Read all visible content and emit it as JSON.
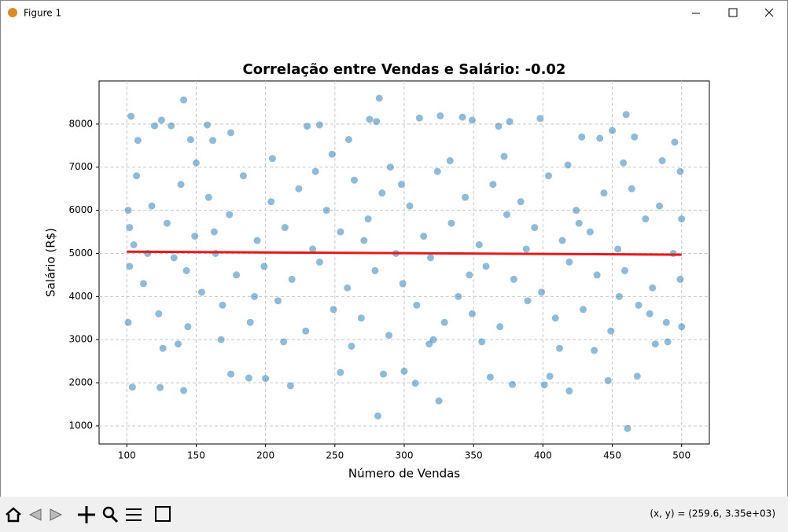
{
  "window": {
    "title": "Figure 1",
    "status": "(x, y) = (259.6, 3.35e+03)"
  },
  "chart_data": {
    "type": "scatter",
    "title": "Correlação entre Vendas e Salário: -0.02",
    "xlabel": "Número de Vendas",
    "ylabel": "Salário (R$)",
    "xlim": [
      80,
      520
    ],
    "ylim": [
      580,
      9000
    ],
    "xticks": [
      100,
      150,
      200,
      250,
      300,
      350,
      400,
      450,
      500
    ],
    "yticks": [
      1000,
      2000,
      3000,
      4000,
      5000,
      6000,
      7000,
      8000
    ],
    "grid": true,
    "series": [
      {
        "color": "#1f77b4",
        "alpha": 0.5,
        "x": [
          105,
          112,
          118,
          123,
          129,
          134,
          139,
          144,
          149,
          154,
          159,
          164,
          169,
          174,
          179,
          184,
          189,
          194,
          199,
          204,
          209,
          214,
          219,
          224,
          229,
          234,
          239,
          244,
          249,
          254,
          259,
          264,
          269,
          274,
          279,
          284,
          289,
          294,
          299,
          304,
          309,
          314,
          319,
          324,
          329,
          334,
          339,
          344,
          349,
          354,
          359,
          364,
          369,
          374,
          379,
          384,
          389,
          394,
          399,
          404,
          409,
          414,
          419,
          424,
          429,
          434,
          439,
          444,
          449,
          454,
          459,
          464,
          469,
          474,
          479,
          484,
          489,
          494,
          499,
          101,
          101,
          102,
          102,
          500,
          500,
          499,
          107,
          126,
          137,
          168,
          213,
          262,
          318,
          356,
          412,
          437,
          481,
          490,
          150,
          205,
          248,
          290,
          333,
          372,
          418,
          458,
          486,
          115,
          192,
          271,
          347,
          426,
          477,
          143,
          236,
          321,
          388,
          455,
          163,
          298,
          141,
          282,
          103,
          460,
          281,
          325,
          461,
          104,
          124,
          141,
          218,
          308,
          378,
          401,
          419,
          447,
          468,
          175,
          188,
          200,
          254,
          285,
          300,
          362,
          405,
          120,
          125,
          132,
          158,
          175,
          230,
          239,
          275,
          280,
          311,
          326,
          342,
          349,
          368,
          376,
          398,
          428,
          441,
          450,
          466,
          495,
          108,
          146,
          162,
          260
        ],
        "y": [
          5200,
          4300,
          6100,
          3600,
          5700,
          4900,
          6600,
          3300,
          5400,
          4100,
          6300,
          5000,
          3800,
          5900,
          4500,
          6800,
          3400,
          5300,
          4700,
          6200,
          3900,
          5600,
          4400,
          6500,
          3200,
          5100,
          4800,
          6000,
          3700,
          5500,
          4200,
          6700,
          3500,
          5800,
          4600,
          6400,
          3100,
          5000,
          4300,
          6100,
          3800,
          5400,
          4900,
          6900,
          3400,
          5700,
          4000,
          6300,
          3600,
          5200,
          4700,
          6600,
          3300,
          5900,
          4400,
          6200,
          3900,
          5600,
          4100,
          6800,
          3500,
          5300,
          4800,
          6000,
          3700,
          5500,
          4500,
          6400,
          3200,
          5100,
          4600,
          6500,
          3800,
          5800,
          4200,
          6100,
          3400,
          5000,
          4400,
          6000,
          3400,
          4700,
          5600,
          3300,
          5800,
          6900,
          6800,
          2800,
          2900,
          3000,
          2950,
          2850,
          2900,
          2950,
          2800,
          2750,
          2900,
          2950,
          7100,
          7200,
          7300,
          7000,
          7150,
          7250,
          7050,
          7100,
          7150,
          5000,
          4000,
          5300,
          4500,
          5700,
          3600,
          4600,
          6900,
          3000,
          5100,
          4000,
          5500,
          6600,
          8560,
          8600,
          8180,
          8220,
          1230,
          1580,
          940,
          1900,
          1890,
          1820,
          1930,
          1990,
          1960,
          1950,
          1810,
          2050,
          2150,
          2200,
          2110,
          2100,
          2240,
          2200,
          2270,
          2130,
          2150,
          7960,
          8090,
          7960,
          7980,
          7800,
          7950,
          7980,
          8110,
          8060,
          8140,
          8190,
          8160,
          8090,
          7950,
          8060,
          8130,
          7700,
          7670,
          7850,
          7700,
          7580,
          7620,
          7640,
          7620,
          7640
        ]
      },
      {
        "type": "line",
        "color": "#e41a1c",
        "x": [
          100,
          500
        ],
        "y": [
          5040,
          4970
        ]
      }
    ]
  }
}
